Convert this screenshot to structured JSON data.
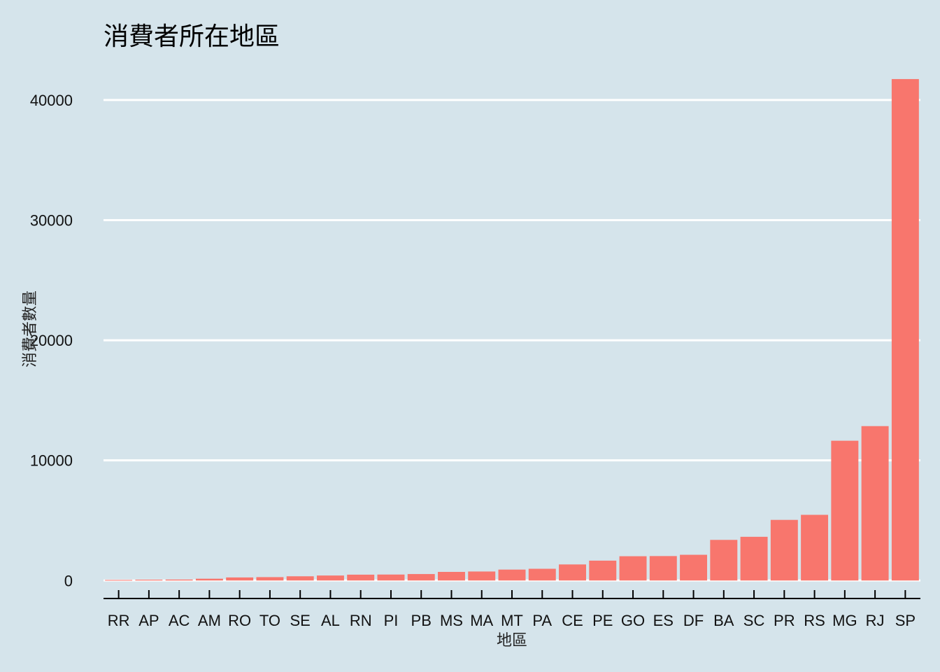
{
  "chart_data": {
    "type": "bar",
    "title": "消費者所在地區",
    "xlabel": "地區",
    "ylabel": "消費者數量",
    "categories": [
      "RR",
      "AP",
      "AC",
      "AM",
      "RO",
      "TO",
      "SE",
      "AL",
      "RN",
      "PI",
      "PB",
      "MS",
      "MA",
      "MT",
      "PA",
      "CE",
      "PE",
      "GO",
      "ES",
      "DF",
      "BA",
      "SC",
      "PR",
      "RS",
      "MG",
      "RJ",
      "SP"
    ],
    "values": [
      46,
      68,
      81,
      148,
      253,
      280,
      350,
      413,
      485,
      495,
      536,
      715,
      747,
      907,
      975,
      1336,
      1652,
      2020,
      2033,
      2140,
      3380,
      3637,
      5045,
      5466,
      11635,
      12852,
      41746
    ],
    "ylim": [
      -1500,
      42500
    ],
    "yticks": [
      0,
      10000,
      20000,
      30000,
      40000
    ],
    "grid": true,
    "legend": "none",
    "colors": {
      "bar": "#f8766d",
      "background": "#d5e4eb",
      "grid": "#ffffff"
    }
  }
}
